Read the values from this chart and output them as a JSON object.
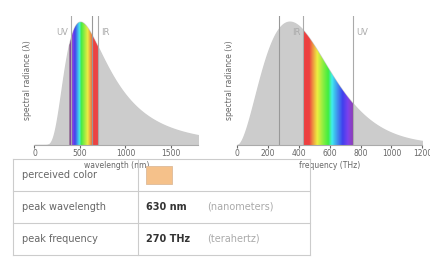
{
  "peak_wavelength_nm": 630,
  "peak_frequency_THz": 270,
  "perceived_color": "#F5C18A",
  "table_border_color": "#CCCCCC",
  "background_color": "#FFFFFF",
  "text_color_dark": "#666666",
  "text_color_light": "#AAAAAA",
  "uv_line_nm": 400,
  "ir_line_nm": 700,
  "uv_freq_THz": 750,
  "ir_freq_THz": 428,
  "wavelength_visible_min": 380,
  "wavelength_visible_max": 700,
  "plot1_xlabel": "wavelength (nm)",
  "plot1_ylabel": "spectral radiance (λ)",
  "plot2_xlabel": "frequency (THz)",
  "plot2_ylabel": "spectral radiance (ν)",
  "plot1_xlim": [
    0,
    1800
  ],
  "plot1_xticks": [
    0,
    500,
    1000,
    1500
  ],
  "plot2_xlim": [
    0,
    1200
  ],
  "plot2_xticks": [
    0,
    200,
    400,
    600,
    800,
    1000,
    1200
  ],
  "gray_fill": "#CCCCCC",
  "uv_ir_label_color": "#AAAAAA",
  "peak_line_color": "#999999",
  "border_line_color": "#AAAAAA",
  "table_rows": [
    {
      "label": "perceived color",
      "bold": "",
      "light": ""
    },
    {
      "label": "peak wavelength",
      "bold": "630 nm",
      "light": "(nanometers)"
    },
    {
      "label": "peak frequency",
      "bold": "270 THz",
      "light": "(terahertz)"
    }
  ]
}
